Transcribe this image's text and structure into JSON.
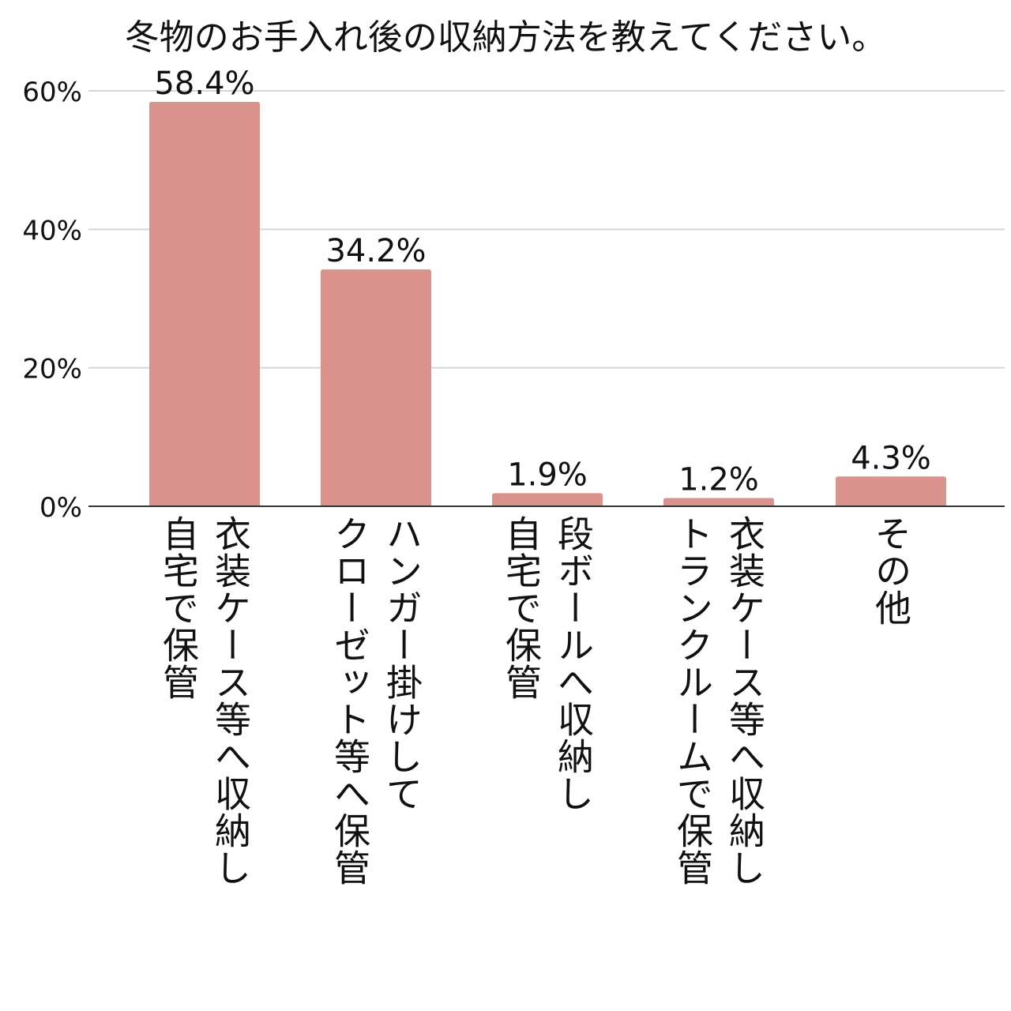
{
  "chart_data": {
    "type": "bar",
    "title": "冬物のお手入れ後の収納方法を教えてください。",
    "categories": [
      [
        "衣装ケース等へ収納し",
        "自宅で保管"
      ],
      [
        "ハンガー掛けして",
        "クローゼット等へ保管"
      ],
      [
        "段ボールへ収納し",
        "自宅で保管"
      ],
      [
        "衣装ケース等へ収納し",
        "トランクルームで保管"
      ],
      [
        "その他"
      ]
    ],
    "values": [
      58.4,
      34.2,
      1.9,
      1.2,
      4.3
    ],
    "data_labels": [
      "58.4%",
      "34.2%",
      "1.9%",
      "1.2%",
      "4.3%"
    ],
    "ylim": [
      0,
      60
    ],
    "yticks": [
      0,
      20,
      40,
      60
    ],
    "ytick_labels": [
      "0%",
      "20%",
      "40%",
      "60%"
    ],
    "xlabel": "",
    "ylabel": "",
    "grid": true,
    "colors": {
      "bar": "#d9928c",
      "grid": "#d6d6d6",
      "axis": "#333333",
      "text": "#111111"
    }
  }
}
